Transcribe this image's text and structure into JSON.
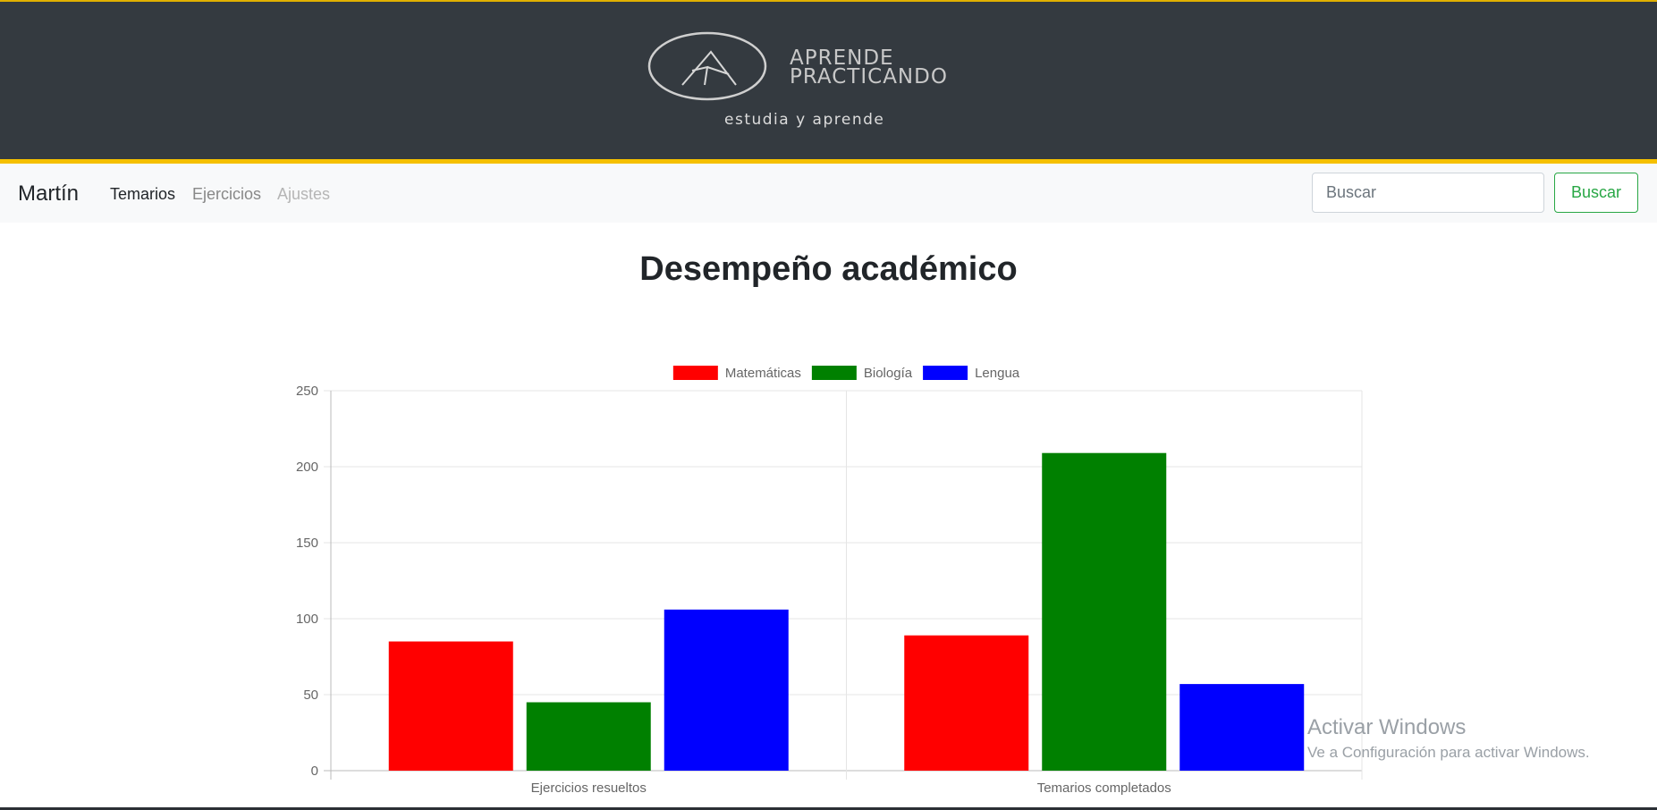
{
  "banner": {
    "logo_line1": "APRENDE",
    "logo_line2": "PRACTICANDO",
    "subtitle": "estudia y aprende",
    "background_color": "#343a40",
    "accent_color": "#f5c000",
    "logo_icon": "mountain-logo-icon"
  },
  "navbar": {
    "brand": "Martín",
    "links": [
      {
        "label": "Temarios",
        "state": "active"
      },
      {
        "label": "Ejercicios",
        "state": "normal"
      },
      {
        "label": "Ajustes",
        "state": "disabled"
      }
    ]
  },
  "search": {
    "placeholder": "Buscar",
    "value": "",
    "button_label": "Buscar",
    "button_color": "#28a745"
  },
  "main": {
    "title": "Desempeño académico"
  },
  "chart_data": {
    "type": "bar",
    "categories": [
      "Ejercicios resueltos",
      "Temarios completados"
    ],
    "series": [
      {
        "name": "Matemáticas",
        "color": "#ff0000",
        "values": [
          85,
          89
        ]
      },
      {
        "name": "Biología",
        "color": "#008000",
        "values": [
          45,
          209
        ]
      },
      {
        "name": "Lengua",
        "color": "#0000ff",
        "values": [
          106,
          57
        ]
      }
    ],
    "ylim": [
      0,
      250
    ],
    "yticks": [
      "0",
      "50",
      "100",
      "150",
      "200",
      "250"
    ],
    "legend_position": "top",
    "grid": true
  },
  "watermark": {
    "title": "Activar Windows",
    "subtitle": "Ve a Configuración para activar Windows."
  }
}
